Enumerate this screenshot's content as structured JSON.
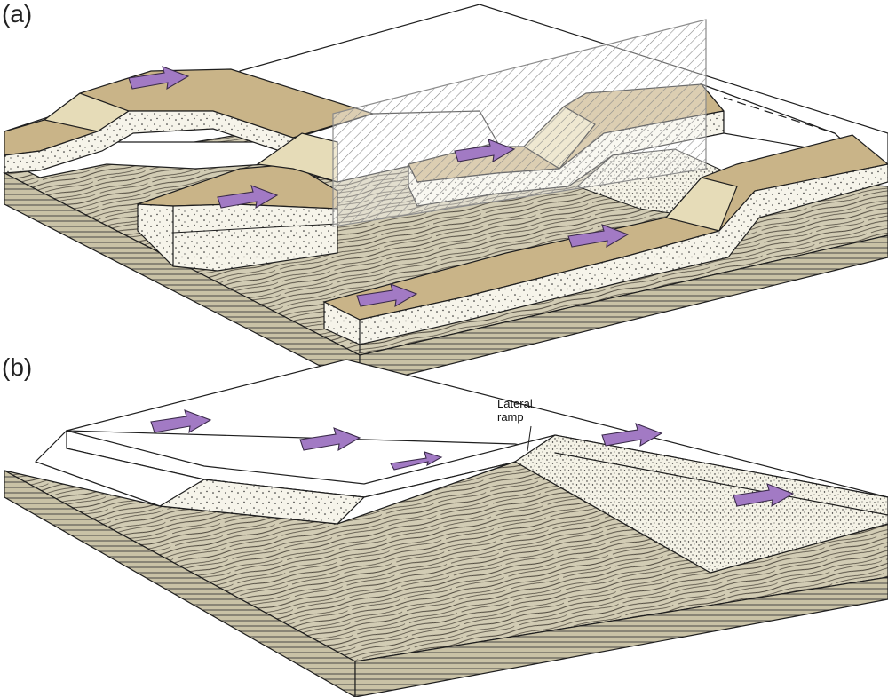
{
  "panels": [
    {
      "label": "(a)"
    },
    {
      "label": "(b)"
    }
  ],
  "annotations": {
    "lateral_ramp_line1": "Lateral",
    "lateral_ramp_line2": "ramp"
  },
  "colors": {
    "hanging_wall_top": "#c9b488",
    "ramp_face": "#e6dcb8",
    "sandstone": "#f6f4ea",
    "white_layer": "#ffffff",
    "basement": "#d2ccb4",
    "basement_dark": "#b9b298",
    "arrow": "#a27ac4",
    "arrow_edge": "#3a2a4a",
    "outline": "#1e1e1e"
  }
}
